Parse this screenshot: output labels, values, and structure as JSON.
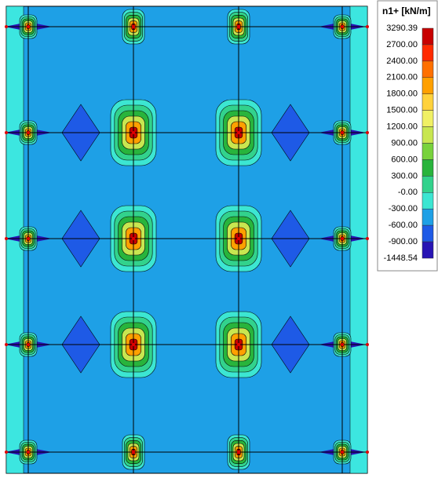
{
  "legend": {
    "title": "n1+ [kN/m]",
    "labels": [
      "3290.39",
      "2700.00",
      "2400.00",
      "2100.00",
      "1800.00",
      "1500.00",
      "1200.00",
      "900.00",
      "600.00",
      "300.00",
      "-0.00",
      "-300.00",
      "-600.00",
      "-900.00",
      "-1448.54"
    ]
  }
}
